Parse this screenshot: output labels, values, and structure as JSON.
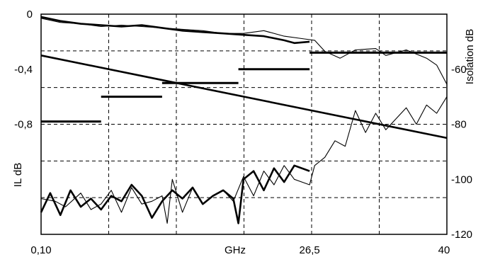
{
  "chart_data": {
    "type": "line",
    "xlabel": "GHz",
    "ylabel_left": "IL dB",
    "ylabel_right": "Isolation dB",
    "x_range": [
      0.1,
      40
    ],
    "x_ticks": [
      {
        "label": "0,10",
        "value": 0.1
      },
      {
        "label": "26,5",
        "value": 26.5
      },
      {
        "label": "40",
        "value": 40
      }
    ],
    "y_left_range": [
      -1.6,
      0
    ],
    "y_left_ticks": [
      {
        "label": "0",
        "value": 0
      },
      {
        "label": "-0,4",
        "value": -0.4
      },
      {
        "label": "-0,8",
        "value": -0.8
      }
    ],
    "y_right_range": [
      -120,
      -40
    ],
    "y_right_ticks": [
      {
        "label": "-60",
        "value": -60
      },
      {
        "label": "-80",
        "value": -80
      },
      {
        "label": "-100",
        "value": -100
      },
      {
        "label": "-120",
        "value": -120
      }
    ],
    "grid": true,
    "grid_style": "dashed",
    "series": [
      {
        "axis": "left",
        "style": "thick",
        "x": [
          0.1,
          2,
          4,
          6,
          8,
          10,
          12,
          14,
          16,
          18,
          20,
          22,
          24,
          25,
          26.5
        ],
        "y": [
          -0.02,
          -0.05,
          -0.07,
          -0.08,
          -0.09,
          -0.08,
          -0.1,
          -0.12,
          -0.13,
          -0.14,
          -0.15,
          -0.16,
          -0.19,
          -0.21,
          -0.2
        ]
      },
      {
        "axis": "left",
        "style": "thin",
        "x": [
          0.1,
          2,
          4,
          6,
          8,
          10,
          12,
          14,
          16,
          18,
          20,
          22,
          24,
          26,
          27,
          28,
          29.5,
          31,
          33,
          34,
          36,
          38,
          39,
          40
        ],
        "y": [
          -0.03,
          -0.06,
          -0.07,
          -0.09,
          -0.08,
          -0.09,
          -0.1,
          -0.11,
          -0.12,
          -0.14,
          -0.14,
          -0.12,
          -0.16,
          -0.18,
          -0.19,
          -0.27,
          -0.32,
          -0.26,
          -0.25,
          -0.3,
          -0.26,
          -0.32,
          -0.37,
          -0.51
        ]
      },
      {
        "axis": "left",
        "style": "thick",
        "x": [
          0.1,
          40
        ],
        "y": [
          -0.3,
          -0.9
        ]
      },
      {
        "axis": "right",
        "style": "thick-step",
        "x": [
          0.1,
          6,
          6,
          12,
          12,
          19.5,
          19.5,
          26.5,
          26.5,
          40
        ],
        "y": [
          -79,
          -79,
          -70,
          -70,
          -65,
          -65,
          -60,
          -60,
          -54,
          -54
        ]
      },
      {
        "axis": "right",
        "style": "thick",
        "x": [
          0.1,
          1,
          2,
          3,
          4,
          5,
          6,
          7,
          8,
          9,
          10,
          11,
          12,
          13,
          14,
          15,
          16,
          17,
          18,
          19,
          19.5,
          20,
          21,
          22,
          23,
          24,
          25,
          26.5
        ],
        "y": [
          -112,
          -105,
          -113,
          -104,
          -110,
          -107,
          -111,
          -106,
          -108,
          -102,
          -106,
          -114,
          -108,
          -104,
          -107,
          -103,
          -109,
          -106,
          -104,
          -107,
          -116,
          -100,
          -97,
          -104,
          -96,
          -101,
          -95,
          -97
        ]
      },
      {
        "axis": "right",
        "style": "thin",
        "x": [
          0.1,
          1.5,
          2.5,
          4,
          5,
          6,
          7,
          8,
          9,
          10,
          11,
          12,
          12.5,
          13,
          14,
          15,
          16,
          17,
          18,
          19,
          20,
          21,
          22,
          23,
          24,
          25,
          26.5,
          27,
          28,
          29,
          30,
          31,
          32,
          33,
          34,
          35,
          36,
          37,
          38,
          39,
          40
        ],
        "y": [
          -107,
          -108,
          -110,
          -105,
          -111,
          -109,
          -104,
          -112,
          -103,
          -109,
          -108,
          -106,
          -116,
          -100,
          -112,
          -103,
          -109,
          -106,
          -104,
          -108,
          -99,
          -106,
          -97,
          -102,
          -95,
          -100,
          -102,
          -95,
          -92,
          -86,
          -88,
          -75,
          -83,
          -76,
          -82,
          -78,
          -74,
          -80,
          -73,
          -76,
          -70
        ]
      }
    ]
  }
}
